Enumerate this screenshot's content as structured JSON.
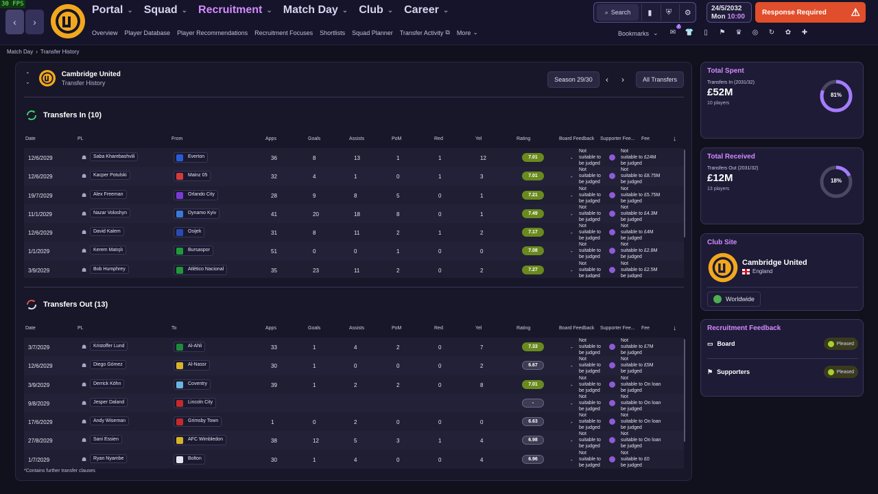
{
  "fps": "30 FPS",
  "nav": {
    "main": [
      "Portal",
      "Squad",
      "Recruitment",
      "Match Day",
      "Club",
      "Career"
    ],
    "active": "Recruitment",
    "sub": [
      "Overview",
      "Player Database",
      "Player Recommendations",
      "Recruitment Focuses",
      "Shortlists",
      "Squad Planner",
      "Transfer Activity",
      "More"
    ],
    "search_label": "Search",
    "date": "24/5/2032",
    "day": "Mon",
    "time": "10:00",
    "response_label": "Response Required",
    "bookmarks_label": "Bookmarks",
    "inbox_badge": "7"
  },
  "breadcrumb": [
    "Match Day",
    "Transfer History"
  ],
  "club": {
    "name": "Cambridge United",
    "subtitle": "Transfer History"
  },
  "controls": {
    "season": "Season 29/30",
    "all_transfers": "All Transfers"
  },
  "columns_in": [
    "Date",
    "PL",
    "From",
    "Apps",
    "Goals",
    "Assists",
    "PoM",
    "Red",
    "Yel",
    "Rating",
    "Board Feedback",
    "Supporter Fee...",
    "Fee"
  ],
  "columns_out": [
    "Date",
    "PL",
    "To",
    "Apps",
    "Goals",
    "Assists",
    "PoM",
    "Red",
    "Yel",
    "Rating",
    "Board Feedback",
    "Supporter Fee...",
    "Fee"
  ],
  "transfers_in": {
    "title": "Transfers In (10)",
    "rows": [
      {
        "date": "12/6/2029",
        "player": "Saba Kharebashvili",
        "club": "Everton",
        "crest": "#2a5bd6",
        "apps": "36",
        "goals": "8",
        "assists": "13",
        "pom": "1",
        "red": "1",
        "yel": "12",
        "rating": "7.01",
        "board": "-",
        "fb": "Not suitable to be judged",
        "fee": "£24M"
      },
      {
        "date": "12/6/2029",
        "player": "Kacper Potulski",
        "club": "Mainz 05",
        "crest": "#d63a3a",
        "apps": "32",
        "goals": "4",
        "assists": "1",
        "pom": "0",
        "red": "1",
        "yel": "3",
        "rating": "7.01",
        "board": "-",
        "fb": "Not suitable to be judged",
        "fee": "£8.75M"
      },
      {
        "date": "19/7/2029",
        "player": "Alex Freeman",
        "club": "Orlando City",
        "crest": "#7a3ad6",
        "apps": "28",
        "goals": "9",
        "assists": "8",
        "pom": "5",
        "red": "0",
        "yel": "1",
        "rating": "7.21",
        "board": "-",
        "fb": "Not suitable to be judged",
        "fee": "£5.75M"
      },
      {
        "date": "11/1/2029",
        "player": "Nazar Voloshyn",
        "club": "Dynamo Kyiv",
        "crest": "#3a7ad6",
        "apps": "41",
        "goals": "20",
        "assists": "18",
        "pom": "8",
        "red": "0",
        "yel": "1",
        "rating": "7.49",
        "board": "-",
        "fb": "Not suitable to be judged",
        "fee": "£4.3M"
      },
      {
        "date": "12/6/2029",
        "player": "David Kalem",
        "club": "Osijek",
        "crest": "#2a4ab6",
        "apps": "31",
        "goals": "8",
        "assists": "11",
        "pom": "2",
        "red": "1",
        "yel": "2",
        "rating": "7.17",
        "board": "-",
        "fb": "Not suitable to be judged",
        "fee": "£4M"
      },
      {
        "date": "1/1/2029",
        "player": "Kerem Matışlı",
        "club": "Bursaspor",
        "crest": "#1e9a3a",
        "apps": "51",
        "goals": "0",
        "assists": "0",
        "pom": "1",
        "red": "0",
        "yel": "0",
        "rating": "7.08",
        "board": "-",
        "fb": "Not suitable to be judged",
        "fee": "£2.8M"
      },
      {
        "date": "3/9/2029",
        "player": "Bob Humphrey",
        "club": "Atlético Nacional",
        "crest": "#1e9a3a",
        "apps": "35",
        "goals": "23",
        "assists": "11",
        "pom": "2",
        "red": "0",
        "yel": "2",
        "rating": "7.27",
        "board": "-",
        "fb": "Not suitable to be judged",
        "fee": "£2.5M"
      }
    ]
  },
  "transfers_out": {
    "title": "Transfers Out (13)",
    "rows": [
      {
        "date": "3/7/2029",
        "player": "Kristoffer Lund",
        "club": "Al-Ahli",
        "crest": "#1e8a3a",
        "apps": "33",
        "goals": "1",
        "assists": "4",
        "pom": "2",
        "red": "0",
        "yel": "7",
        "rating": "7.33",
        "board": "-",
        "fb": "Not suitable to be judged",
        "fee": "£7M"
      },
      {
        "date": "12/6/2029",
        "player": "Diego Gómez",
        "club": "Al-Nassr",
        "crest": "#d6b42a",
        "apps": "30",
        "goals": "1",
        "assists": "0",
        "pom": "0",
        "red": "0",
        "yel": "2",
        "rating": "6.67",
        "board": "-",
        "fb": "Not suitable to be judged",
        "fee": "£5M"
      },
      {
        "date": "3/9/2029",
        "player": "Derrick Köhn",
        "club": "Coventry",
        "crest": "#6ab4e0",
        "apps": "39",
        "goals": "1",
        "assists": "2",
        "pom": "2",
        "red": "0",
        "yel": "8",
        "rating": "7.01",
        "board": "-",
        "fb": "Not suitable to be judged",
        "fee": "On loan"
      },
      {
        "date": "9/8/2029",
        "player": "Jesper Daland",
        "club": "Lincoln City",
        "crest": "#c42a2a",
        "apps": "",
        "goals": "",
        "assists": "",
        "pom": "",
        "red": "",
        "yel": "",
        "rating": "-",
        "board": "-",
        "fb": "Not suitable to be judged",
        "fee": "On loan"
      },
      {
        "date": "17/6/2029",
        "player": "Andy Wiseman",
        "club": "Grimsby Town",
        "crest": "#c42a2a",
        "apps": "1",
        "goals": "0",
        "assists": "2",
        "pom": "0",
        "red": "0",
        "yel": "0",
        "rating": "6.63",
        "board": "-",
        "fb": "Not suitable to be judged",
        "fee": "On loan"
      },
      {
        "date": "27/8/2029",
        "player": "Sani Essien",
        "club": "AFC Wimbledon",
        "crest": "#d6b42a",
        "apps": "38",
        "goals": "12",
        "assists": "5",
        "pom": "3",
        "red": "1",
        "yel": "4",
        "rating": "6.98",
        "board": "-",
        "fb": "Not suitable to be judged",
        "fee": "On loan"
      },
      {
        "date": "1/7/2029",
        "player": "Ryan Nyambe",
        "club": "Bolton",
        "crest": "#e6e6f0",
        "apps": "30",
        "goals": "1",
        "assists": "4",
        "pom": "0",
        "red": "0",
        "yel": "4",
        "rating": "6.96",
        "board": "-",
        "fb": "Not suitable to be judged",
        "fee": "£0"
      }
    ]
  },
  "footnote": "*Contains further transfer clauses",
  "total_spent": {
    "title": "Total Spent",
    "sub": "Transfers In (2031/32)",
    "amount": "£52M",
    "players": "10 players",
    "percent": 81
  },
  "total_received": {
    "title": "Total Received",
    "sub": "Transfers Out (2031/32)",
    "amount": "£12M",
    "players": "13 players",
    "percent": 18
  },
  "club_site": {
    "title": "Club Site",
    "name": "Cambridge United",
    "country": "England",
    "reach": "Worldwide"
  },
  "recruitment_feedback": {
    "title": "Recruitment Feedback",
    "board": "Board",
    "supporters": "Supporters",
    "board_status": "Pleased",
    "supporters_status": "Pleased"
  },
  "colors": {
    "accent": "#d58bff",
    "alert": "#e04e2b",
    "rating_green": "#6a8a1e",
    "club_gold": "#f2a81d"
  }
}
